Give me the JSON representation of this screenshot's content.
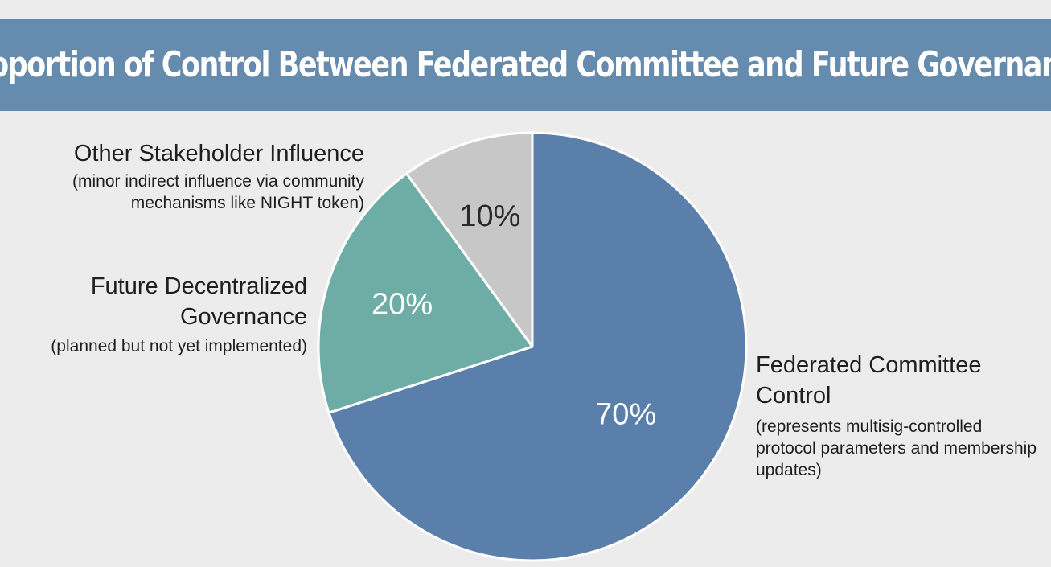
{
  "chart_data": {
    "type": "pie",
    "title": "Proportion of Control Between Federated Committee and Future Governance",
    "slices": [
      {
        "name": "Federated Committee Control",
        "note": "(represents multisig-controlled protocol parameters and membership updates)",
        "value": 70,
        "label": "70%",
        "color": "#5b7fab"
      },
      {
        "name": "Future Decentralized Governance",
        "note": "(planned but not yet implemented)",
        "value": 20,
        "label": "20%",
        "color": "#6dada6"
      },
      {
        "name": "Other Stakeholder Influence",
        "note": "(minor indirect influence via community mechanisms like NIGHT token)",
        "value": 10,
        "label": "10%",
        "color": "#c7c7c7"
      }
    ],
    "label_colors": [
      "#ffffff",
      "#ffffff",
      "#2a2a2a"
    ]
  },
  "colors": {
    "banner": "#658baf",
    "background": "#ececec",
    "slice_border": "#ffffff"
  }
}
